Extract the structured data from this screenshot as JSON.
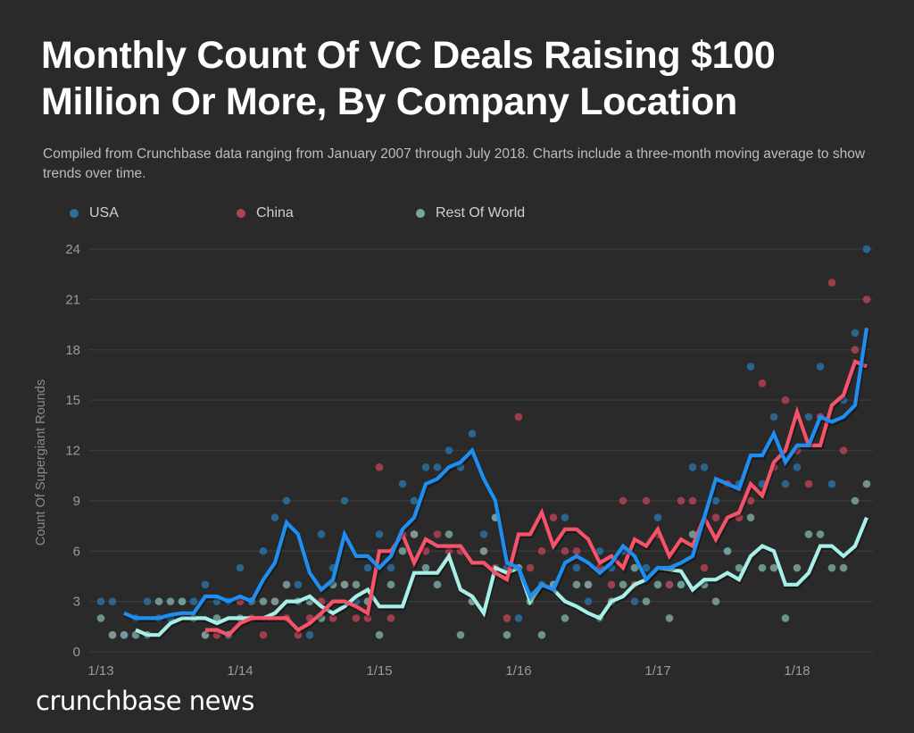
{
  "chart_data": {
    "type": "line",
    "title": "Monthly Count Of VC Deals Raising $100 Million Or More, By Company Location",
    "subtitle": "Compiled from Crunchbase data ranging from January 2007 through July 2018. Charts include a three-month moving average to show trends over time.",
    "xlabel": "",
    "ylabel": "Count Of Supergiant Rounds",
    "x_start": "1/13",
    "x_end": "7/18",
    "months": 67,
    "x_ticks": [
      {
        "label": "1/13",
        "month_index": 0
      },
      {
        "label": "1/14",
        "month_index": 12
      },
      {
        "label": "1/15",
        "month_index": 24
      },
      {
        "label": "1/16",
        "month_index": 36
      },
      {
        "label": "1/17",
        "month_index": 48
      },
      {
        "label": "1/18",
        "month_index": 60
      }
    ],
    "y_ticks": [
      "0",
      "3",
      "6",
      "9",
      "12",
      "15",
      "18",
      "21",
      "24"
    ],
    "ylim": [
      0,
      24
    ],
    "grid": true,
    "legend_position": "top-left",
    "series": [
      {
        "name": "USA",
        "color": "#1f8ef1",
        "dot_color": "#2b6f9e",
        "raw": [
          3,
          3,
          1,
          2,
          3,
          2,
          2,
          3,
          3,
          4,
          3,
          3,
          5,
          3,
          6,
          8,
          9,
          4,
          1,
          7,
          5,
          9,
          3,
          5,
          7,
          5,
          10,
          9,
          11,
          11,
          12,
          11,
          13,
          7,
          8,
          5,
          2,
          3,
          4,
          4,
          8,
          5,
          3,
          6,
          5,
          6,
          3,
          5,
          8,
          4,
          4,
          11,
          11,
          9,
          6,
          10,
          17,
          10,
          14,
          10,
          11,
          14,
          17,
          10,
          15,
          19,
          24
        ],
        "moving_average": [
          null,
          null,
          2.3,
          2.0,
          2.0,
          2.0,
          2.2,
          2.3,
          2.3,
          3.3,
          3.3,
          3.0,
          3.3,
          3.0,
          4.3,
          5.3,
          7.7,
          7.0,
          4.7,
          3.7,
          4.3,
          7.0,
          5.7,
          5.7,
          5.0,
          5.7,
          7.3,
          8.0,
          10.0,
          10.3,
          11.0,
          11.3,
          12.0,
          10.3,
          9.0,
          5.3,
          5.0,
          3.3,
          4.0,
          3.7,
          5.3,
          5.7,
          5.3,
          4.7,
          5.3,
          6.3,
          5.7,
          4.3,
          5.0,
          5.0,
          5.3,
          5.7,
          8.0,
          10.3,
          10.0,
          9.7,
          11.7,
          11.7,
          13.0,
          11.3,
          12.3,
          12.3,
          14.0,
          13.7,
          14.0,
          14.7,
          19.3
        ]
      },
      {
        "name": "China",
        "color": "#f4536a",
        "dot_color": "#b14253",
        "raw": [
          null,
          1,
          null,
          null,
          null,
          null,
          null,
          null,
          null,
          1,
          1,
          1,
          3,
          2,
          1,
          3,
          2,
          1,
          2,
          3,
          2,
          4,
          2,
          2,
          11,
          2,
          7,
          7,
          6,
          7,
          6,
          6,
          3,
          6,
          5,
          2,
          14,
          5,
          6,
          8,
          6,
          6,
          4,
          5,
          4,
          9,
          4,
          9,
          7,
          4,
          9,
          9,
          5,
          8,
          10,
          8,
          9,
          16,
          11,
          15,
          12,
          10,
          14,
          22,
          12,
          18,
          21
        ],
        "moving_average": [
          null,
          null,
          null,
          null,
          null,
          null,
          null,
          null,
          null,
          1.3,
          1.3,
          1.0,
          1.7,
          2.0,
          2.0,
          2.0,
          2.0,
          1.3,
          1.7,
          2.3,
          3.0,
          3.0,
          2.7,
          2.3,
          6.0,
          6.0,
          7.0,
          5.3,
          6.7,
          6.3,
          6.3,
          6.3,
          5.3,
          5.3,
          4.7,
          4.3,
          7.0,
          7.0,
          8.3,
          6.3,
          7.3,
          7.3,
          6.7,
          5.3,
          5.7,
          5.0,
          6.7,
          6.3,
          7.3,
          5.7,
          6.7,
          6.3,
          8.0,
          6.7,
          8.0,
          8.3,
          10.0,
          9.3,
          11.3,
          12.0,
          14.3,
          12.3,
          12.3,
          14.7,
          15.3,
          17.3,
          17.0
        ]
      },
      {
        "name": "Rest Of World",
        "color": "#a6f0e7",
        "dot_color": "#7aa6a1",
        "raw": [
          2,
          1,
          1,
          1,
          1,
          3,
          3,
          3,
          2,
          1,
          2,
          1,
          2,
          3,
          3,
          3,
          4,
          3,
          3,
          2,
          4,
          4,
          4,
          3,
          1,
          4,
          6,
          7,
          5,
          4,
          7,
          1,
          3,
          6,
          8,
          1,
          5,
          3,
          1,
          4,
          2,
          4,
          4,
          2,
          3,
          4,
          5,
          3,
          4,
          2,
          4,
          7,
          4,
          3,
          6,
          5,
          8,
          5,
          5,
          2,
          5,
          7,
          7,
          5,
          5,
          9,
          10
        ],
        "moving_average": [
          null,
          null,
          null,
          1.3,
          1.0,
          1.0,
          1.7,
          2.0,
          2.0,
          2.0,
          1.7,
          2.0,
          2.0,
          2.0,
          2.0,
          2.3,
          3.0,
          3.0,
          3.3,
          2.7,
          2.3,
          2.7,
          3.3,
          3.7,
          2.7,
          2.7,
          2.7,
          4.7,
          4.7,
          4.7,
          5.7,
          3.7,
          3.3,
          2.3,
          5.0,
          4.7,
          5.0,
          3.0,
          4.0,
          3.7,
          3.0,
          2.7,
          2.3,
          2.0,
          3.0,
          3.3,
          4.0,
          4.3,
          5.0,
          4.9,
          4.8,
          3.7,
          4.3,
          4.3,
          4.7,
          4.3,
          5.7,
          6.3,
          6.0,
          4.0,
          4.0,
          4.7,
          6.3,
          6.3,
          5.7,
          6.3,
          8.0
        ]
      }
    ],
    "brand": "crunchbase news"
  },
  "colors": {
    "background": "#2a2a2a",
    "grid": "#3a3a3a"
  }
}
